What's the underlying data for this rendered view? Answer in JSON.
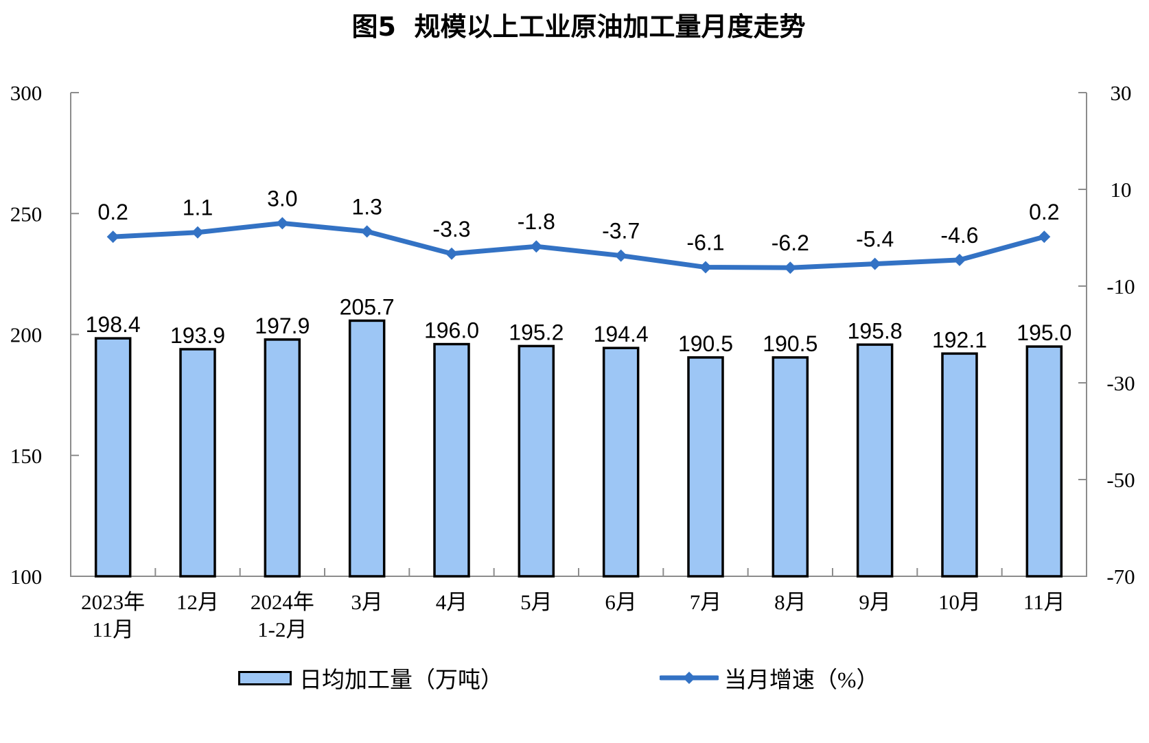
{
  "page": {
    "background": "#ffffff"
  },
  "chart_data": {
    "type": "combo(bar+line)",
    "title": "图5  规模以上工业原油加工量月度走势",
    "categories": [
      "2023年\n11月",
      "12月",
      "2024年\n1-2月",
      "3月",
      "4月",
      "5月",
      "6月",
      "7月",
      "8月",
      "9月",
      "10月",
      "11月"
    ],
    "series": [
      {
        "name": "日均加工量（万吨）",
        "type": "bar",
        "axis": "left",
        "color": "#9DC6F5",
        "border_color": "#000000",
        "values": [
          198.4,
          193.9,
          197.9,
          205.7,
          196.0,
          195.2,
          194.4,
          190.5,
          190.5,
          195.8,
          192.1,
          195.0
        ]
      },
      {
        "name": "当月增速（%）",
        "type": "line",
        "axis": "right",
        "color": "#3372C4",
        "marker": "diamond",
        "values": [
          0.2,
          1.1,
          3.0,
          1.3,
          -3.3,
          -1.8,
          -3.7,
          -6.1,
          -6.2,
          -5.4,
          -4.6,
          0.2
        ]
      }
    ],
    "left_axis": {
      "min": 100,
      "max": 300,
      "step": 50,
      "ticks": [
        300,
        250,
        200,
        150,
        100
      ]
    },
    "right_axis": {
      "min": -70,
      "max": 30,
      "step": 20,
      "ticks": [
        30,
        10,
        -10,
        -30,
        -50,
        -70
      ]
    },
    "grid": false,
    "legend_position": "bottom",
    "axis_color": "#8C8C8C",
    "label_color": "#000000",
    "value_decimals": 1
  },
  "legend": {
    "bar_label": "日均加工量（万吨）",
    "line_label": "当月增速（%）"
  }
}
